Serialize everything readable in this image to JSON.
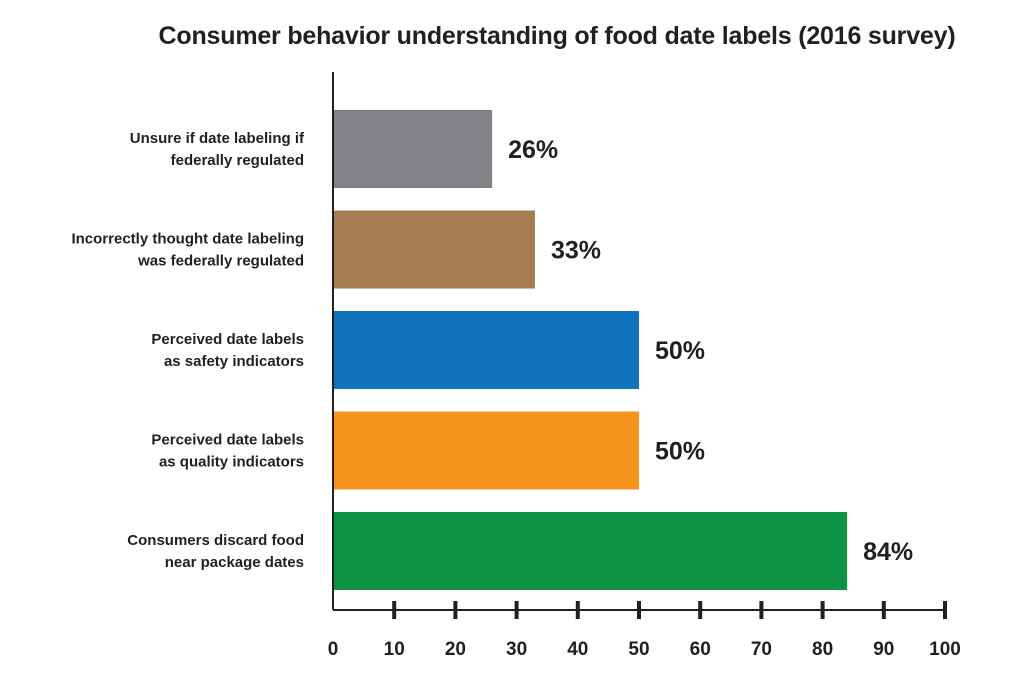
{
  "chart_data": {
    "type": "bar",
    "orientation": "horizontal",
    "title": "Consumer behavior understanding of food date labels (2016 survey)",
    "categories": [
      [
        "Unsure if date labeling if",
        "federally regulated"
      ],
      [
        "Incorrectly thought date labeling",
        "was federally regulated"
      ],
      [
        "Perceived date labels",
        "as safety indicators"
      ],
      [
        "Perceived date labels",
        "as quality indicators"
      ],
      [
        "Consumers discard food",
        "near package dates"
      ]
    ],
    "values": [
      26,
      33,
      50,
      50,
      84
    ],
    "value_labels": [
      "26%",
      "33%",
      "50%",
      "50%",
      "84%"
    ],
    "colors": [
      "#808285",
      "#a67c52",
      "#1074bc",
      "#f7941d",
      "#0c9444"
    ],
    "xlim": [
      0,
      100
    ],
    "xticks": [
      0,
      10,
      20,
      30,
      40,
      50,
      60,
      70,
      80,
      90,
      100
    ],
    "xlabel": "",
    "ylabel": "",
    "grid": false,
    "legend": "none"
  }
}
